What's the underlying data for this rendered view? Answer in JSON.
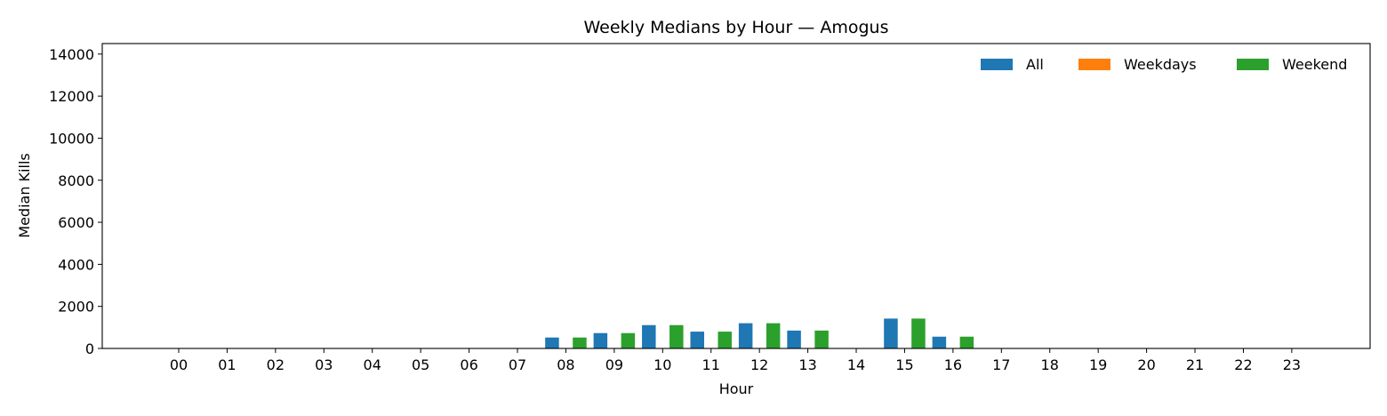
{
  "chart_data": {
    "type": "bar",
    "title": "Weekly Medians by Hour — Amogus",
    "xlabel": "Hour",
    "ylabel": "Median Kills",
    "ylim": [
      0,
      14500
    ],
    "yticks": [
      "0",
      "2000",
      "4000",
      "6000",
      "8000",
      "10000",
      "12000",
      "14000"
    ],
    "categories": [
      "00",
      "01",
      "02",
      "03",
      "04",
      "05",
      "06",
      "07",
      "08",
      "09",
      "10",
      "11",
      "12",
      "13",
      "14",
      "15",
      "16",
      "17",
      "18",
      "19",
      "20",
      "21",
      "22",
      "23"
    ],
    "legend_position": "top-right",
    "grid": false,
    "series": [
      {
        "name": "All",
        "color": "#1f77b4",
        "values": [
          0,
          0,
          0,
          0,
          0,
          0,
          0,
          0,
          520,
          730,
          1110,
          800,
          1200,
          850,
          0,
          1420,
          560,
          0,
          0,
          0,
          0,
          0,
          0,
          0
        ]
      },
      {
        "name": "Weekdays",
        "color": "#ff7f0e",
        "values": [
          0,
          0,
          0,
          0,
          0,
          0,
          0,
          0,
          0,
          0,
          0,
          0,
          0,
          0,
          0,
          0,
          0,
          0,
          0,
          0,
          0,
          0,
          0,
          0
        ]
      },
      {
        "name": "Weekend",
        "color": "#2ca02c",
        "values": [
          0,
          0,
          0,
          0,
          0,
          0,
          0,
          0,
          520,
          730,
          1110,
          800,
          1200,
          850,
          0,
          1420,
          560,
          0,
          0,
          0,
          0,
          0,
          0,
          0
        ]
      }
    ]
  }
}
